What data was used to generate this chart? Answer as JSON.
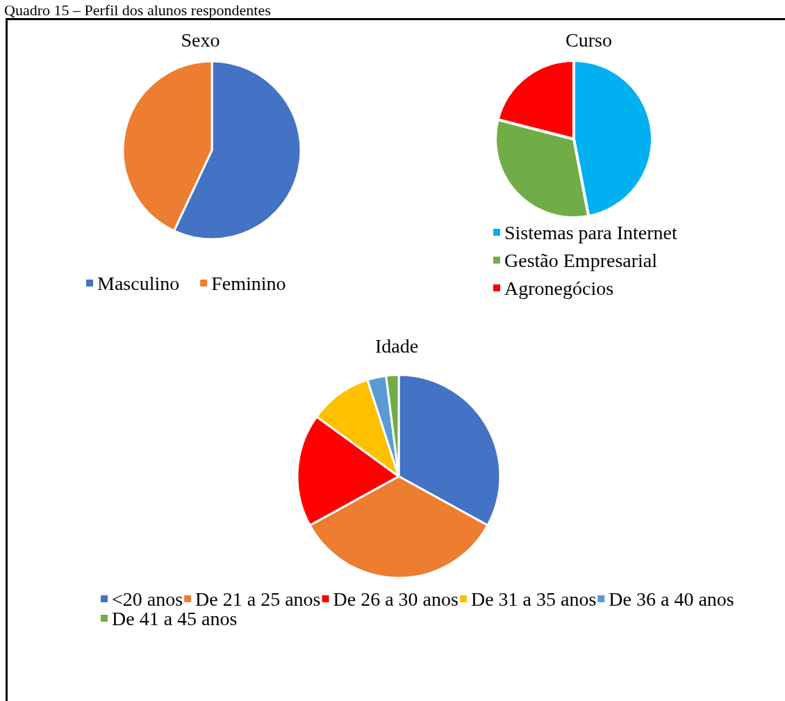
{
  "chart_data": [
    {
      "type": "pie",
      "title": "Sexo",
      "categories": [
        "Masculino",
        "Feminino"
      ],
      "values": [
        57,
        43
      ],
      "colors": [
        "#4472c4",
        "#ed7d31"
      ],
      "legend": "bottom",
      "annotations": [
        "Quadro 15 – Perfil dos alunos respondentes"
      ]
    },
    {
      "type": "pie",
      "title": "Curso",
      "categories": [
        "Sistemas para Internet",
        "Gestão Empresarial",
        "Agronegócios"
      ],
      "values": [
        47,
        32,
        21
      ],
      "colors": [
        "#00b0f0",
        "#70ad47",
        "#ff0000"
      ],
      "legend": "bottom"
    },
    {
      "type": "pie",
      "title": "Idade",
      "categories": [
        "<20 anos",
        "De 21 a 25 anos",
        "De 26 a 30 anos",
        "De 31 a 35 anos",
        "De 36 a 40 anos",
        "De 41 a 45 anos"
      ],
      "values": [
        33,
        34,
        18,
        10,
        3,
        2
      ],
      "colors": [
        "#4472c4",
        "#ed7d31",
        "#ff0000",
        "#ffc000",
        "#5b9bd5",
        "#70ad47"
      ],
      "legend": "bottom"
    }
  ]
}
